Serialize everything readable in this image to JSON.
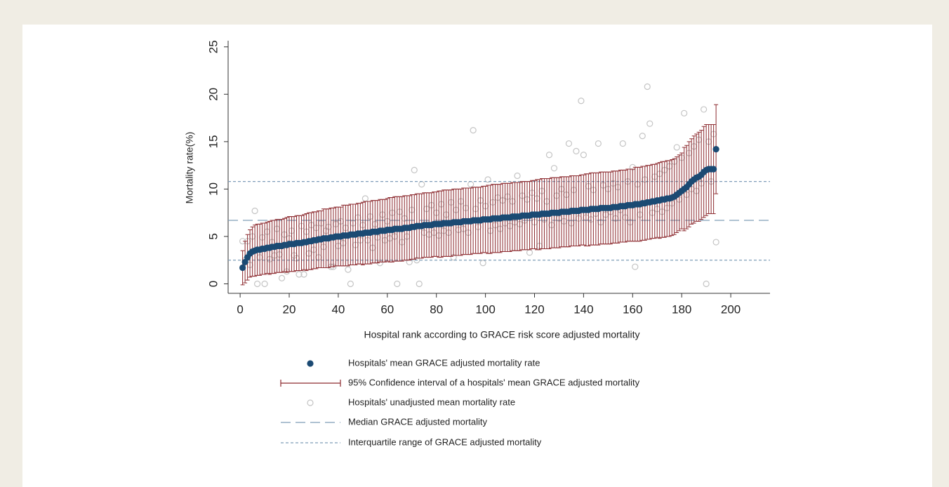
{
  "chart_data": {
    "type": "errorbar-scatter",
    "x_label": "Hospital rank according to GRACE risk score adjusted mortality",
    "y_label": "Mortality rate(%)",
    "xlim": [
      -4.9,
      216
    ],
    "ylim": [
      -1,
      25.5
    ],
    "xticks": [
      0,
      20,
      40,
      60,
      80,
      100,
      120,
      140,
      160,
      180,
      200
    ],
    "yticks": [
      0,
      5,
      10,
      15,
      20,
      25
    ],
    "x": [
      1,
      2,
      3,
      4,
      5,
      6,
      7,
      8,
      9,
      10,
      11,
      12,
      13,
      14,
      15,
      16,
      17,
      18,
      19,
      20,
      21,
      22,
      23,
      24,
      25,
      26,
      27,
      28,
      29,
      30,
      31,
      32,
      33,
      34,
      35,
      36,
      37,
      38,
      39,
      40,
      41,
      42,
      43,
      44,
      45,
      46,
      47,
      48,
      49,
      50,
      51,
      52,
      53,
      54,
      55,
      56,
      57,
      58,
      59,
      60,
      61,
      62,
      63,
      64,
      65,
      66,
      67,
      68,
      69,
      70,
      71,
      72,
      73,
      74,
      75,
      76,
      77,
      78,
      79,
      80,
      81,
      82,
      83,
      84,
      85,
      86,
      87,
      88,
      89,
      90,
      91,
      92,
      93,
      94,
      95,
      96,
      97,
      98,
      99,
      100,
      101,
      102,
      103,
      104,
      105,
      106,
      107,
      108,
      109,
      110,
      111,
      112,
      113,
      114,
      115,
      116,
      117,
      118,
      119,
      120,
      121,
      122,
      123,
      124,
      125,
      126,
      127,
      128,
      129,
      130,
      131,
      132,
      133,
      134,
      135,
      136,
      137,
      138,
      139,
      140,
      141,
      142,
      143,
      144,
      145,
      146,
      147,
      148,
      149,
      150,
      151,
      152,
      153,
      154,
      155,
      156,
      157,
      158,
      159,
      160,
      161,
      162,
      163,
      164,
      165,
      166,
      167,
      168,
      169,
      170,
      171,
      172,
      173,
      174,
      175,
      176,
      177,
      178,
      179,
      180,
      181,
      182,
      183,
      184,
      185,
      186,
      187,
      188,
      189,
      190,
      191,
      192,
      193,
      194
    ],
    "series": [
      {
        "name": "Hospitals' mean GRACE adjusted mortality rate",
        "color": "#1b4a73",
        "values": [
          1.7,
          2.3,
          2.8,
          3.2,
          3.4,
          3.5,
          3.6,
          3.6,
          3.7,
          3.7,
          3.8,
          3.8,
          3.9,
          3.9,
          4.0,
          4.0,
          4.0,
          4.1,
          4.1,
          4.2,
          4.2,
          4.2,
          4.3,
          4.3,
          4.3,
          4.4,
          4.4,
          4.5,
          4.5,
          4.6,
          4.6,
          4.7,
          4.7,
          4.8,
          4.8,
          4.8,
          4.9,
          4.9,
          5.0,
          5.0,
          5.0,
          5.1,
          5.1,
          5.1,
          5.2,
          5.2,
          5.2,
          5.3,
          5.3,
          5.3,
          5.4,
          5.4,
          5.4,
          5.5,
          5.5,
          5.5,
          5.6,
          5.6,
          5.6,
          5.7,
          5.7,
          5.7,
          5.8,
          5.8,
          5.8,
          5.8,
          5.9,
          5.9,
          5.9,
          6.0,
          6.0,
          6.1,
          6.1,
          6.1,
          6.2,
          6.2,
          6.2,
          6.2,
          6.3,
          6.3,
          6.3,
          6.3,
          6.4,
          6.4,
          6.4,
          6.4,
          6.5,
          6.5,
          6.5,
          6.5,
          6.6,
          6.6,
          6.6,
          6.6,
          6.7,
          6.7,
          6.7,
          6.7,
          6.8,
          6.8,
          6.8,
          6.8,
          6.9,
          6.9,
          6.9,
          6.9,
          7.0,
          7.0,
          7.0,
          7.0,
          7.1,
          7.1,
          7.1,
          7.1,
          7.2,
          7.2,
          7.2,
          7.2,
          7.3,
          7.3,
          7.3,
          7.3,
          7.4,
          7.4,
          7.4,
          7.4,
          7.5,
          7.5,
          7.5,
          7.5,
          7.6,
          7.6,
          7.6,
          7.6,
          7.7,
          7.7,
          7.7,
          7.7,
          7.8,
          7.8,
          7.8,
          7.8,
          7.9,
          7.9,
          7.9,
          7.9,
          8.0,
          8.0,
          8.0,
          8.0,
          8.0,
          8.1,
          8.1,
          8.1,
          8.2,
          8.2,
          8.2,
          8.3,
          8.3,
          8.3,
          8.4,
          8.4,
          8.4,
          8.5,
          8.5,
          8.6,
          8.6,
          8.7,
          8.7,
          8.8,
          8.8,
          8.9,
          8.9,
          9.0,
          9.0,
          9.1,
          9.2,
          9.4,
          9.6,
          9.8,
          10.0,
          10.2,
          10.5,
          10.8,
          11.0,
          11.2,
          11.3,
          11.5,
          11.8,
          12.0,
          12.1,
          12.1,
          12.1,
          14.2
        ]
      },
      {
        "name": "95% Confidence interval of a hospitals' mean GRACE adjusted mortality",
        "color": "#8c2a2f",
        "errors": [
          1.8,
          2.2,
          2.4,
          2.5,
          2.6,
          2.7,
          2.7,
          2.7,
          2.7,
          2.7,
          2.7,
          2.8,
          2.8,
          2.8,
          2.8,
          2.8,
          2.8,
          2.8,
          2.9,
          2.9,
          2.9,
          2.9,
          2.9,
          2.9,
          2.9,
          2.9,
          3.0,
          3.0,
          3.0,
          3.0,
          3.0,
          3.0,
          3.0,
          3.1,
          3.1,
          3.1,
          3.1,
          3.1,
          3.1,
          3.1,
          3.1,
          3.2,
          3.2,
          3.2,
          3.2,
          3.2,
          3.2,
          3.2,
          3.2,
          3.3,
          3.3,
          3.3,
          3.3,
          3.3,
          3.3,
          3.3,
          3.3,
          3.3,
          3.3,
          3.3,
          3.4,
          3.4,
          3.4,
          3.4,
          3.4,
          3.4,
          3.4,
          3.4,
          3.4,
          3.4,
          3.4,
          3.4,
          3.4,
          3.4,
          3.4,
          3.4,
          3.4,
          3.4,
          3.4,
          3.4,
          3.5,
          3.5,
          3.5,
          3.5,
          3.5,
          3.5,
          3.5,
          3.5,
          3.5,
          3.5,
          3.5,
          3.5,
          3.5,
          3.5,
          3.5,
          3.5,
          3.5,
          3.5,
          3.5,
          3.5,
          3.6,
          3.6,
          3.6,
          3.6,
          3.6,
          3.6,
          3.6,
          3.6,
          3.6,
          3.6,
          3.6,
          3.6,
          3.6,
          3.6,
          3.6,
          3.6,
          3.6,
          3.6,
          3.6,
          3.6,
          3.7,
          3.7,
          3.7,
          3.7,
          3.7,
          3.7,
          3.7,
          3.7,
          3.7,
          3.7,
          3.7,
          3.7,
          3.7,
          3.7,
          3.7,
          3.7,
          3.7,
          3.7,
          3.7,
          3.7,
          3.8,
          3.8,
          3.8,
          3.8,
          3.8,
          3.8,
          3.8,
          3.8,
          3.8,
          3.8,
          3.8,
          3.8,
          3.8,
          3.8,
          3.8,
          3.8,
          3.8,
          3.8,
          3.8,
          3.8,
          3.9,
          3.9,
          3.9,
          3.9,
          3.9,
          3.9,
          3.9,
          3.9,
          3.9,
          3.9,
          4.0,
          4.0,
          4.0,
          4.0,
          4.0,
          4.0,
          4.0,
          4.0,
          4.0,
          4.0,
          4.4,
          4.4,
          4.5,
          4.5,
          4.6,
          4.6,
          4.7,
          4.7,
          4.8,
          4.8,
          4.7,
          4.7,
          4.7,
          4.7
        ]
      },
      {
        "name": "Hospitals' unadjusted mean mortality rate",
        "color": "#c4c4c4",
        "values": [
          4.5,
          2.5,
          4.5,
          2.0,
          5.0,
          7.7,
          0,
          2.8,
          4.9,
          0,
          5.5,
          2.6,
          4.4,
          3.0,
          5.8,
          3.1,
          0.6,
          5.2,
          1.3,
          4.8,
          5.6,
          3.0,
          2.7,
          1.0,
          6.1,
          1.0,
          5.5,
          3.2,
          6.2,
          3.6,
          5.9,
          2.8,
          6.4,
          3.9,
          5.6,
          6.0,
          1.8,
          1.8,
          6.3,
          4.0,
          6.6,
          4.3,
          5.9,
          1.5,
          0,
          6.4,
          4.1,
          7.0,
          4.6,
          6.2,
          9.0,
          4.6,
          7.1,
          3.8,
          6.3,
          4.9,
          2.2,
          7.3,
          4.6,
          6.6,
          4.8,
          7.5,
          5.0,
          0,
          7.6,
          4.4,
          6.9,
          5.0,
          2.3,
          7.8,
          12.0,
          2.5,
          0,
          10.5,
          5.4,
          7.9,
          5.2,
          8.3,
          5.4,
          7.5,
          5.1,
          8.4,
          5.6,
          7.3,
          5.4,
          8.6,
          2.8,
          7.8,
          5.7,
          8.7,
          5.8,
          8.0,
          5.4,
          10.5,
          16.2,
          7.9,
          6.0,
          8.8,
          2.2,
          8.2,
          11.0,
          5.6,
          8.6,
          6.2,
          9.1,
          5.8,
          8.8,
          6.4,
          9.2,
          6.1,
          8.7,
          6.5,
          11.4,
          6.3,
          9.3,
          6.7,
          8.9,
          3.3,
          9.6,
          6.5,
          9.0,
          4.0,
          9.8,
          6.8,
          8.7,
          13.6,
          6.2,
          12.2,
          9.3,
          6.9,
          10.0,
          6.6,
          9.4,
          14.8,
          6.4,
          9.9,
          14.0,
          6.9,
          19.3,
          13.6,
          7.0,
          10.3,
          6.8,
          9.9,
          7.4,
          14.8,
          6.5,
          10.4,
          7.3,
          10.0,
          7.6,
          10.6,
          6.9,
          10.2,
          7.8,
          14.8,
          7.0,
          10.8,
          6.5,
          12.3,
          1.8,
          10.5,
          7.3,
          15.6,
          11.0,
          20.8,
          16.9,
          7.5,
          11.3,
          7.9,
          11.6,
          7.6,
          12.0,
          8.0,
          12.4,
          8.5,
          12.9,
          14.4,
          8.9,
          13.3,
          18.0,
          9.4,
          13.8,
          10.0,
          14.5,
          9.8,
          15.2,
          10.6,
          18.4,
          0,
          15.0,
          10.8,
          15.8,
          4.4
        ]
      }
    ],
    "reference_lines": [
      {
        "name": "Median GRACE adjusted mortality",
        "color": "#7f9db8",
        "dash": "long",
        "values": [
          6.7
        ]
      },
      {
        "name": "Interquartile range of GRACE adjusted mortality",
        "color": "#7f9db8",
        "dash": "short",
        "values": [
          2.5,
          10.8
        ]
      }
    ]
  }
}
